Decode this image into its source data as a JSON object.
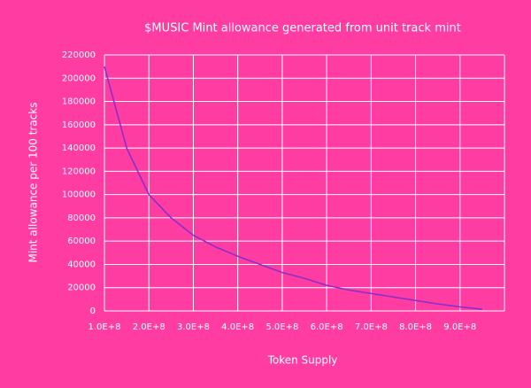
{
  "chart_data": {
    "type": "line",
    "title": "$MUSIC Mint allowance generated from unit track mint",
    "x_label": "Token Supply",
    "y_label": "Mint allowance per 100 tracks",
    "x": [
      100000000,
      150000000,
      200000000,
      250000000,
      300000000,
      350000000,
      400000000,
      450000000,
      500000000,
      550000000,
      600000000,
      650000000,
      700000000,
      750000000,
      800000000,
      850000000,
      900000000,
      950000000
    ],
    "values": [
      210000,
      140000,
      100000,
      80000,
      65000,
      55000,
      47000,
      40000,
      33000,
      28000,
      22000,
      18000,
      15000,
      12000,
      9000,
      6000,
      3500,
      1500
    ],
    "color": "#8b2fc9",
    "xlim": [
      100000000,
      1000000000
    ],
    "ylim": [
      0,
      220000
    ],
    "xticks": [
      {
        "value": 100000000,
        "label": "1.0E+8"
      },
      {
        "value": 200000000,
        "label": "2.0E+8"
      },
      {
        "value": 300000000,
        "label": "3.0E+8"
      },
      {
        "value": 400000000,
        "label": "4.0E+8"
      },
      {
        "value": 500000000,
        "label": "5.0E+8"
      },
      {
        "value": 600000000,
        "label": "6.0E+8"
      },
      {
        "value": 700000000,
        "label": "7.0E+8"
      },
      {
        "value": 800000000,
        "label": "8.0E+8"
      },
      {
        "value": 900000000,
        "label": "9.0E+8"
      }
    ],
    "yticks": [
      0,
      20000,
      40000,
      60000,
      80000,
      100000,
      120000,
      140000,
      160000,
      180000,
      200000,
      220000
    ],
    "grid": true
  }
}
